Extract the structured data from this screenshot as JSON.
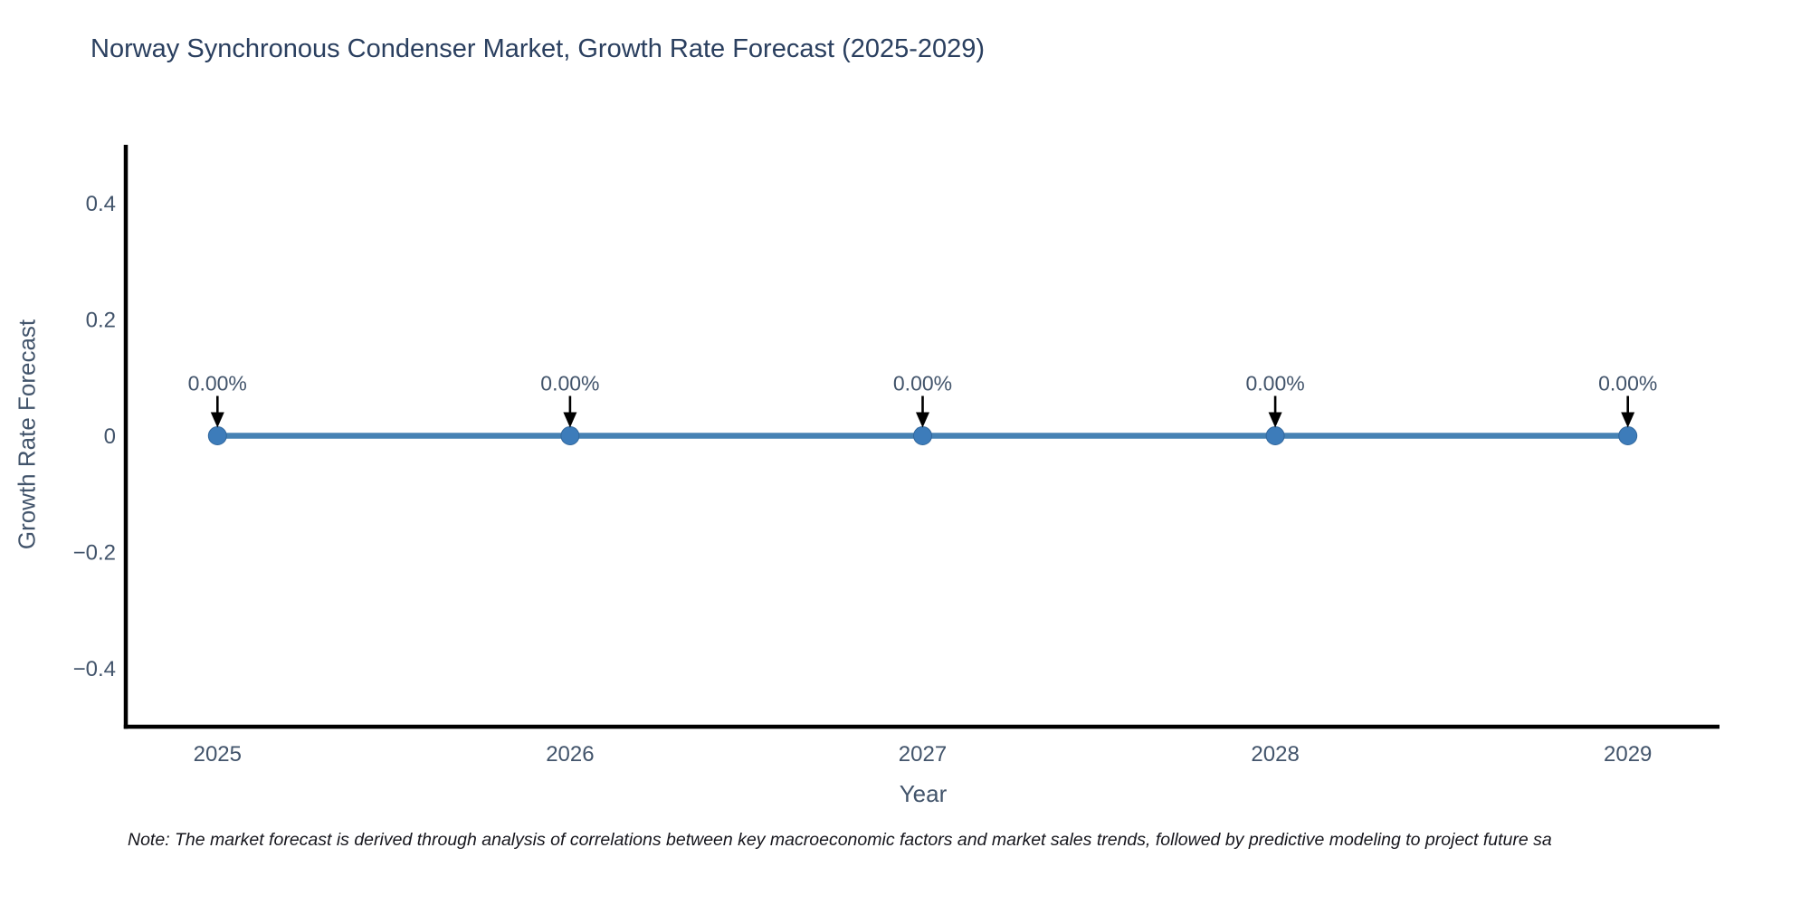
{
  "page": {
    "title": "Norway Synchronous Condenser Market, Growth Rate Forecast (2025-2029)",
    "note": "Note: The market forecast is derived through analysis of correlations between key macroeconomic factors and market sales trends, followed by predictive modeling to project future sa"
  },
  "chart_data": {
    "type": "line",
    "title": "Norway Synchronous Condenser Market, Growth Rate Forecast (2025-2029)",
    "xlabel": "Year",
    "ylabel": "Growth Rate Forecast",
    "x": [
      2025,
      2026,
      2027,
      2028,
      2029
    ],
    "series": [
      {
        "name": "Growth Rate Forecast",
        "values": [
          0,
          0,
          0,
          0,
          0
        ]
      }
    ],
    "point_labels": [
      "0.00%",
      "0.00%",
      "0.00%",
      "0.00%",
      "0.00%"
    ],
    "x_tick_labels": [
      "2025",
      "2026",
      "2027",
      "2028",
      "2029"
    ],
    "y_tick_labels": [
      "0.4",
      "0.2",
      "0",
      "−0.2",
      "−0.4"
    ],
    "y_tick_values": [
      0.4,
      0.2,
      0,
      -0.2,
      -0.4
    ],
    "xlim": [
      2024.74,
      2029.26
    ],
    "ylim": [
      -0.5,
      0.5
    ],
    "grid": false,
    "legend": "none",
    "colors": {
      "line": "#4682b4",
      "marker": "#3d7cba",
      "axis": "#000000",
      "tick_label": "#42546b",
      "annotation_text": "#42546b",
      "annotation_arrow": "#000000",
      "title": "#2a3f5f"
    }
  }
}
